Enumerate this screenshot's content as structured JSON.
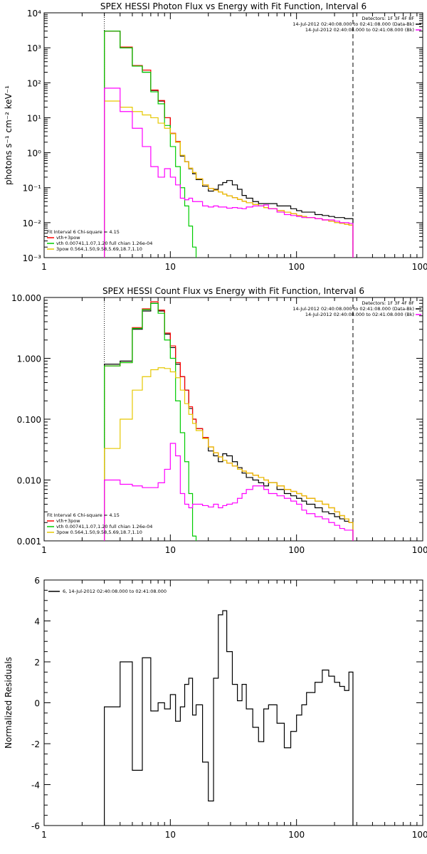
{
  "chart_data": [
    {
      "type": "line",
      "title": "SPEX HESSI Photon Flux vs Energy with Fit Function, Interval 6",
      "xlabel": "",
      "ylabel": "photons s⁻¹ cm⁻² keV⁻¹",
      "xscale": "log",
      "yscale": "log",
      "xlim": [
        1,
        1000
      ],
      "ylim": [
        0.001,
        10000
      ],
      "x_ticks": [
        "1",
        "10",
        "100",
        "1000"
      ],
      "y_ticks": [
        "10⁻³",
        "10⁻²",
        "10⁻¹",
        "10⁰",
        "10¹",
        "10²",
        "10³",
        "10⁴"
      ],
      "fit_range_keV": [
        3,
        280
      ],
      "legend_top_right": [
        "Detectors: 1F 3F 4F 8F",
        "14-Jul-2012 02:40:08.000 to 02:41:08.000 (Data-Bk)",
        "14-Jul-2012 02:40:08.000 to 02:41:08.000 (Bk)"
      ],
      "legend_bottom_left": {
        "header": "Fit Interval 6   Chi-square = 4.15",
        "entries": [
          "vth+3pow",
          "vth 0.00741,1.07,1.20  full chian 1.26e-04",
          "3pow 0.564,1.50,9.58,5.69,18.7,1.10"
        ]
      },
      "energy_edges": [
        3,
        4,
        5,
        6,
        7,
        8,
        9,
        10,
        11,
        12,
        13,
        14,
        15,
        16,
        18,
        20,
        22,
        24,
        26,
        28,
        31,
        34,
        37,
        40,
        45,
        50,
        55,
        60,
        70,
        80,
        90,
        100,
        110,
        120,
        140,
        160,
        180,
        200,
        220,
        240,
        260,
        280
      ],
      "series": [
        {
          "name": "Data-Bk",
          "color": "#000000",
          "values": [
            3000,
            1000,
            300,
            200,
            60,
            30,
            10,
            3.5,
            2,
            0.8,
            0.55,
            0.35,
            0.25,
            0.17,
            0.11,
            0.08,
            0.09,
            0.12,
            0.14,
            0.16,
            0.12,
            0.09,
            0.06,
            0.05,
            0.04,
            0.035,
            0.035,
            0.035,
            0.03,
            0.03,
            0.025,
            0.022,
            0.02,
            0.02,
            0.017,
            0.016,
            0.015,
            0.014,
            0.014,
            0.013,
            0.013
          ]
        },
        {
          "name": "vth+3pow",
          "color": "#ff0000",
          "values": [
            3000,
            1050,
            310,
            230,
            62,
            31,
            10,
            3.6,
            2.1,
            0.85,
            0.55,
            0.36,
            0.27,
            0.18,
            0.12,
            0.095,
            0.085,
            0.075,
            0.065,
            0.058,
            0.052,
            0.046,
            0.041,
            0.037,
            0.033,
            0.03,
            0.027,
            0.025,
            0.022,
            0.02,
            0.018,
            0.016,
            0.015,
            0.014,
            0.013,
            0.012,
            0.011,
            0.01,
            0.0095,
            0.009,
            0.0085
          ]
        },
        {
          "name": "vth",
          "color": "#00cc00",
          "values": [
            3000,
            1000,
            300,
            200,
            55,
            25,
            6,
            1.5,
            0.4,
            0.1,
            0.03,
            0.008,
            0.002,
            0.0008
          ]
        },
        {
          "name": "3pow",
          "color": "#e6c800",
          "values": [
            30,
            20,
            15,
            12,
            10,
            7,
            5,
            3.5,
            2,
            0.85,
            0.55,
            0.36,
            0.27,
            0.18,
            0.12,
            0.095,
            0.085,
            0.075,
            0.065,
            0.058,
            0.052,
            0.046,
            0.041,
            0.037,
            0.033,
            0.03,
            0.027,
            0.025,
            0.022,
            0.02,
            0.018,
            0.016,
            0.015,
            0.014,
            0.013,
            0.012,
            0.011,
            0.01,
            0.0095,
            0.009,
            0.0085
          ]
        },
        {
          "name": "Bk",
          "color": "#ff00ff",
          "values": [
            70,
            15,
            5,
            1.5,
            0.4,
            0.2,
            0.35,
            0.2,
            0.12,
            0.05,
            0.045,
            0.05,
            0.04,
            0.04,
            0.03,
            0.028,
            0.03,
            0.028,
            0.028,
            0.026,
            0.027,
            0.026,
            0.025,
            0.028,
            0.03,
            0.03,
            0.032,
            0.025,
            0.02,
            0.017,
            0.016,
            0.015,
            0.014,
            0.014,
            0.013,
            0.012,
            0.012,
            0.011,
            0.01,
            0.01,
            0.0095
          ]
        }
      ]
    },
    {
      "type": "line",
      "title": "SPEX HESSI Count Flux vs Energy with Fit Function, Interval 6",
      "xlabel": "",
      "ylabel": "",
      "xscale": "log",
      "yscale": "log",
      "xlim": [
        1,
        1000
      ],
      "ylim": [
        0.001,
        10
      ],
      "x_ticks": [
        "1",
        "10",
        "100",
        "1000"
      ],
      "y_ticks": [
        "0.001",
        "0.010",
        "0.100",
        "1.000",
        "10.000"
      ],
      "fit_range_keV": [
        3,
        280
      ],
      "legend_top_right": [
        "Detectors: 1F 3F 4F 8F",
        "14-Jul-2012 02:40:08.000 to 02:41:08.000 (Data-Bk)",
        "14-Jul-2012 02:40:08.000 to 02:41:08.000 (Bk)"
      ],
      "legend_bottom_left": {
        "header": "Fit Interval 6   Chi-square = 4.15",
        "entries": [
          "vth+3pow",
          "vth 0.00741,1.07,1.20  full chian 1.26e-04",
          "3pow 0.564,1.50,9.58,5.69,18.7,1.10"
        ]
      },
      "energy_edges": [
        3,
        4,
        5,
        6,
        7,
        8,
        9,
        10,
        11,
        12,
        13,
        14,
        15,
        16,
        18,
        20,
        22,
        24,
        26,
        28,
        31,
        34,
        37,
        40,
        45,
        50,
        55,
        60,
        70,
        80,
        90,
        100,
        110,
        120,
        140,
        160,
        180,
        200,
        220,
        240,
        260,
        280
      ],
      "series": [
        {
          "name": "Data-Bk",
          "color": "#000000",
          "values": [
            0.8,
            0.9,
            3,
            6,
            8,
            6,
            2.5,
            1.5,
            0.8,
            0.5,
            0.3,
            0.15,
            0.1,
            0.07,
            0.05,
            0.03,
            0.025,
            0.02,
            0.027,
            0.025,
            0.02,
            0.016,
            0.013,
            0.011,
            0.01,
            0.009,
            0.008,
            0.009,
            0.007,
            0.006,
            0.0055,
            0.005,
            0.0045,
            0.004,
            0.0035,
            0.003,
            0.0028,
            0.0025,
            0.0023,
            0.0021,
            0.002
          ]
        },
        {
          "name": "vth+3pow",
          "color": "#ff0000",
          "values": [
            0.75,
            0.85,
            3.2,
            6.5,
            8.5,
            6.2,
            2.6,
            1.6,
            0.85,
            0.5,
            0.3,
            0.16,
            0.1,
            0.07,
            0.05,
            0.035,
            0.028,
            0.024,
            0.021,
            0.019,
            0.017,
            0.015,
            0.014,
            0.013,
            0.012,
            0.011,
            0.01,
            0.009,
            0.008,
            0.007,
            0.0065,
            0.006,
            0.0055,
            0.005,
            0.0045,
            0.004,
            0.0035,
            0.003,
            0.0026,
            0.0023,
            0.002
          ]
        },
        {
          "name": "vth",
          "color": "#00cc00",
          "values": [
            0.75,
            0.85,
            3.1,
            6.3,
            8.0,
            5.5,
            2.0,
            1.0,
            0.2,
            0.06,
            0.02,
            0.006,
            0.0012
          ]
        },
        {
          "name": "3pow",
          "color": "#e6c800",
          "values": [
            0.033,
            0.1,
            0.3,
            0.5,
            0.65,
            0.7,
            0.68,
            0.6,
            0.48,
            0.3,
            0.18,
            0.12,
            0.085,
            0.065,
            0.048,
            0.035,
            0.028,
            0.024,
            0.021,
            0.019,
            0.017,
            0.015,
            0.014,
            0.013,
            0.012,
            0.011,
            0.01,
            0.009,
            0.008,
            0.007,
            0.0065,
            0.006,
            0.0055,
            0.005,
            0.0045,
            0.004,
            0.0035,
            0.003,
            0.0026,
            0.0023,
            0.002
          ]
        },
        {
          "name": "Bk",
          "color": "#ff00ff",
          "values": [
            0.01,
            0.0085,
            0.008,
            0.0075,
            0.0075,
            0.009,
            0.015,
            0.04,
            0.025,
            0.006,
            0.004,
            0.0035,
            0.004,
            0.004,
            0.0038,
            0.0036,
            0.004,
            0.0035,
            0.0038,
            0.004,
            0.0042,
            0.005,
            0.006,
            0.007,
            0.008,
            0.008,
            0.007,
            0.006,
            0.0055,
            0.005,
            0.0045,
            0.004,
            0.0032,
            0.0028,
            0.0025,
            0.0023,
            0.002,
            0.0018,
            0.0016,
            0.0015,
            0.0015
          ]
        }
      ]
    },
    {
      "type": "line",
      "title": "",
      "xlabel": "",
      "ylabel": "Normalized Residuals",
      "xscale": "log",
      "yscale": "linear",
      "xlim": [
        1,
        1000
      ],
      "ylim": [
        -6,
        6
      ],
      "x_ticks": [
        "1",
        "10",
        "100",
        "1000"
      ],
      "y_ticks": [
        "-6",
        "-4",
        "-2",
        "0",
        "2",
        "4",
        "6"
      ],
      "legend": "6, 14-Jul-2012 02:40:08.000 to 02:41:08.000",
      "energy_edges": [
        3,
        4,
        5,
        6,
        7,
        8,
        9,
        10,
        11,
        12,
        13,
        14,
        15,
        16,
        18,
        20,
        22,
        24,
        26,
        28,
        31,
        34,
        37,
        40,
        45,
        50,
        55,
        60,
        70,
        80,
        90,
        100,
        110,
        120,
        140,
        160,
        180,
        200,
        220,
        240,
        260,
        280
      ],
      "series": [
        {
          "name": "residuals",
          "color": "#000000",
          "values": [
            -0.2,
            2.0,
            -3.3,
            2.2,
            -0.4,
            0.0,
            -0.3,
            0.4,
            -0.9,
            -0.2,
            0.9,
            1.2,
            -0.6,
            -0.1,
            -2.9,
            -4.8,
            1.2,
            4.3,
            4.5,
            2.5,
            0.9,
            0.1,
            0.9,
            -0.3,
            -1.2,
            -1.9,
            -0.3,
            -0.1,
            -1.0,
            -2.2,
            -1.4,
            -0.6,
            -0.1,
            0.5,
            1.0,
            1.6,
            1.3,
            1.0,
            0.8,
            0.6,
            1.5
          ]
        }
      ]
    }
  ]
}
